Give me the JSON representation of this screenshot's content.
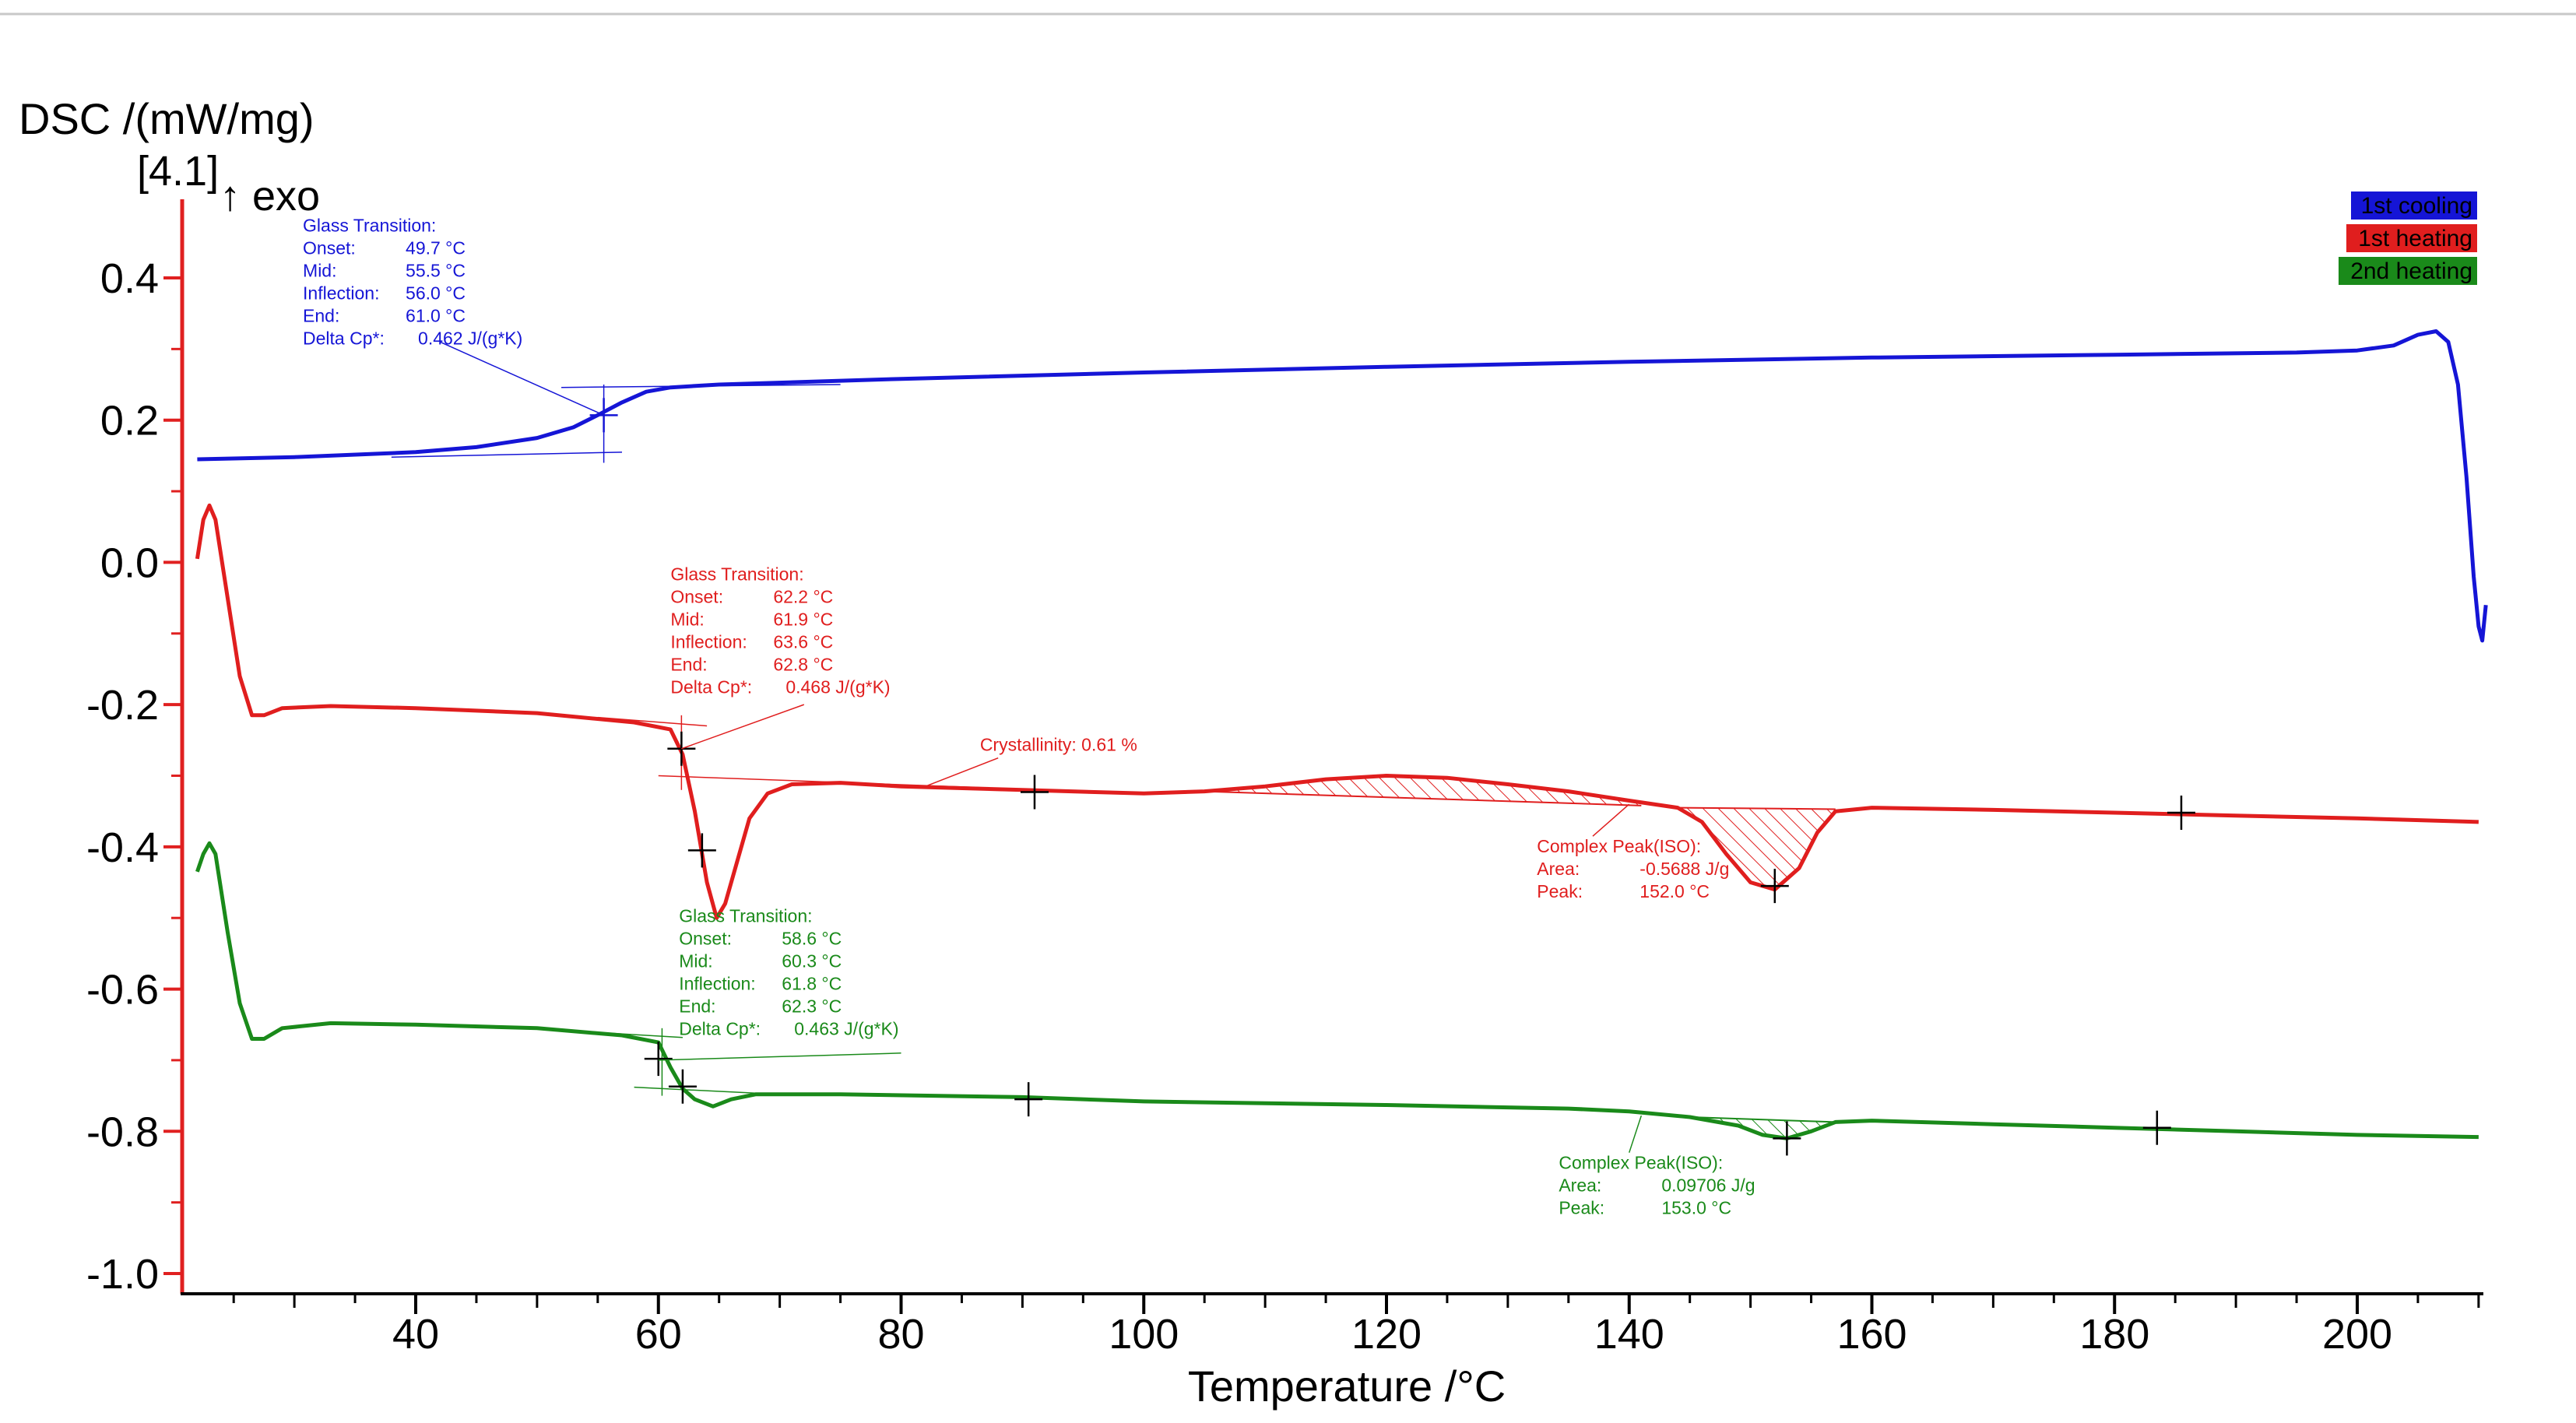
{
  "chart_data": {
    "type": "line",
    "ylabel": "DSC /(mW/mg)",
    "ylabel_tag": "[4.1]",
    "exo_label": "↑ exo",
    "xlabel": "Temperature /°C",
    "xlim": [
      22,
      212
    ],
    "ylim": [
      -1.03,
      0.5
    ],
    "xticks": [
      "40",
      "60",
      "80",
      "100",
      "120",
      "140",
      "160",
      "180",
      "200"
    ],
    "yticks": [
      "0.4",
      "0.2",
      "0.0",
      "-0.2",
      "-0.4",
      "-0.6",
      "-0.8",
      "-1.0"
    ],
    "colors": {
      "blue": "#1515d6",
      "red": "#e01e1e",
      "green": "#1a8a1a",
      "axis": "#e02020"
    },
    "legend": [
      "1st cooling",
      "1st heating",
      "2nd heating"
    ],
    "series": [
      {
        "name": "1st cooling",
        "color": "#1515d6",
        "points": [
          [
            22,
            0.145
          ],
          [
            30,
            0.148
          ],
          [
            40,
            0.155
          ],
          [
            45,
            0.162
          ],
          [
            50,
            0.175
          ],
          [
            53,
            0.19
          ],
          [
            55,
            0.207
          ],
          [
            57,
            0.225
          ],
          [
            59,
            0.24
          ],
          [
            61,
            0.246
          ],
          [
            65,
            0.25
          ],
          [
            80,
            0.258
          ],
          [
            100,
            0.267
          ],
          [
            120,
            0.275
          ],
          [
            140,
            0.282
          ],
          [
            160,
            0.288
          ],
          [
            180,
            0.292
          ],
          [
            195,
            0.295
          ],
          [
            200,
            0.298
          ],
          [
            203,
            0.305
          ],
          [
            205,
            0.32
          ],
          [
            206.5,
            0.325
          ],
          [
            207.5,
            0.31
          ],
          [
            208.3,
            0.25
          ],
          [
            209,
            0.12
          ],
          [
            209.6,
            -0.02
          ],
          [
            210,
            -0.09
          ],
          [
            210.3,
            -0.11
          ],
          [
            210.6,
            -0.06
          ]
        ]
      },
      {
        "name": "1st heating",
        "color": "#e01e1e",
        "points": [
          [
            22,
            0.005
          ],
          [
            22.5,
            0.06
          ],
          [
            23,
            0.08
          ],
          [
            23.5,
            0.06
          ],
          [
            24.5,
            -0.05
          ],
          [
            25.5,
            -0.16
          ],
          [
            26.5,
            -0.215
          ],
          [
            27.5,
            -0.215
          ],
          [
            29,
            -0.205
          ],
          [
            33,
            -0.202
          ],
          [
            40,
            -0.205
          ],
          [
            50,
            -0.212
          ],
          [
            58,
            -0.225
          ],
          [
            61,
            -0.235
          ],
          [
            62,
            -0.27
          ],
          [
            63,
            -0.35
          ],
          [
            64,
            -0.45
          ],
          [
            64.8,
            -0.5
          ],
          [
            65.5,
            -0.48
          ],
          [
            66.5,
            -0.42
          ],
          [
            67.5,
            -0.36
          ],
          [
            69,
            -0.325
          ],
          [
            71,
            -0.312
          ],
          [
            75,
            -0.31
          ],
          [
            80,
            -0.315
          ],
          [
            90,
            -0.32
          ],
          [
            100,
            -0.325
          ],
          [
            105,
            -0.322
          ],
          [
            110,
            -0.315
          ],
          [
            115,
            -0.305
          ],
          [
            120,
            -0.3
          ],
          [
            125,
            -0.303
          ],
          [
            130,
            -0.312
          ],
          [
            135,
            -0.322
          ],
          [
            140,
            -0.335
          ],
          [
            144,
            -0.345
          ],
          [
            146,
            -0.365
          ],
          [
            148,
            -0.41
          ],
          [
            150,
            -0.45
          ],
          [
            152,
            -0.46
          ],
          [
            154,
            -0.43
          ],
          [
            155.5,
            -0.38
          ],
          [
            157,
            -0.35
          ],
          [
            160,
            -0.345
          ],
          [
            170,
            -0.348
          ],
          [
            180,
            -0.352
          ],
          [
            190,
            -0.356
          ],
          [
            200,
            -0.36
          ],
          [
            210,
            -0.365
          ]
        ]
      },
      {
        "name": "2nd heating",
        "color": "#1a8a1a",
        "points": [
          [
            22,
            -0.435
          ],
          [
            22.5,
            -0.41
          ],
          [
            23,
            -0.395
          ],
          [
            23.5,
            -0.41
          ],
          [
            24.5,
            -0.52
          ],
          [
            25.5,
            -0.62
          ],
          [
            26.5,
            -0.67
          ],
          [
            27.5,
            -0.67
          ],
          [
            29,
            -0.655
          ],
          [
            33,
            -0.648
          ],
          [
            40,
            -0.65
          ],
          [
            50,
            -0.655
          ],
          [
            57,
            -0.665
          ],
          [
            60,
            -0.675
          ],
          [
            61,
            -0.71
          ],
          [
            62,
            -0.74
          ],
          [
            63,
            -0.755
          ],
          [
            64.5,
            -0.765
          ],
          [
            66,
            -0.755
          ],
          [
            68,
            -0.748
          ],
          [
            75,
            -0.748
          ],
          [
            90,
            -0.752
          ],
          [
            100,
            -0.758
          ],
          [
            120,
            -0.763
          ],
          [
            135,
            -0.768
          ],
          [
            140,
            -0.772
          ],
          [
            145,
            -0.78
          ],
          [
            149,
            -0.792
          ],
          [
            151,
            -0.805
          ],
          [
            153,
            -0.81
          ],
          [
            155,
            -0.8
          ],
          [
            157,
            -0.787
          ],
          [
            160,
            -0.785
          ],
          [
            170,
            -0.79
          ],
          [
            180,
            -0.795
          ],
          [
            190,
            -0.8
          ],
          [
            200,
            -0.805
          ],
          [
            210,
            -0.808
          ]
        ]
      }
    ],
    "markers": [
      {
        "x": 55.5,
        "y": 0.207,
        "color": "#1515d6"
      },
      {
        "x": 61.9,
        "y": -0.262,
        "color": "#000000"
      },
      {
        "x": 63.6,
        "y": -0.405,
        "color": "#000000"
      },
      {
        "x": 91,
        "y": -0.323,
        "color": "#000000"
      },
      {
        "x": 152,
        "y": -0.455,
        "color": "#000000"
      },
      {
        "x": 185.5,
        "y": -0.352,
        "color": "#000000"
      },
      {
        "x": 60,
        "y": -0.698,
        "color": "#000000"
      },
      {
        "x": 62,
        "y": -0.737,
        "color": "#000000"
      },
      {
        "x": 90.5,
        "y": -0.755,
        "color": "#000000"
      },
      {
        "x": 153,
        "y": -0.81,
        "color": "#000000"
      },
      {
        "x": 183.5,
        "y": -0.795,
        "color": "#000000"
      }
    ],
    "shaded_regions": [
      {
        "name": "crystallinity-1st-heating",
        "color": "#e01e1e",
        "x_start": 105,
        "x_end": 141,
        "baseline": [
          -0.322,
          -0.342
        ]
      },
      {
        "name": "peak-1st-heating",
        "color": "#e01e1e",
        "x_start": 144,
        "x_end": 157,
        "baseline": [
          -0.345,
          -0.347
        ]
      },
      {
        "name": "peak-2nd-heating",
        "color": "#1a8a1a",
        "x_start": 145,
        "x_end": 157,
        "baseline": [
          -0.78,
          -0.787
        ]
      }
    ],
    "annotations": [
      {
        "name": "blue-glass-transition",
        "color": "#1515d6",
        "anchor": {
          "x": 30.7,
          "y": 0.465
        },
        "target": {
          "x": 55.5,
          "y": 0.207
        },
        "leader_from": {
          "x": 42,
          "y": 0.31
        },
        "title": "Glass Transition:",
        "rows": [
          {
            "label": "Onset:",
            "value": "49.7 °C"
          },
          {
            "label": "Mid:",
            "value": "55.5 °C"
          },
          {
            "label": "Inflection:",
            "value": "56.0 °C"
          },
          {
            "label": "End:",
            "value": "61.0 °C"
          },
          {
            "label": "Delta Cp*:",
            "value": "0.462 J/(g*K)"
          }
        ]
      },
      {
        "name": "red-glass-transition",
        "color": "#e01e1e",
        "anchor": {
          "x": 61.0,
          "y": -0.025
        },
        "target": {
          "x": 61.9,
          "y": -0.262
        },
        "leader_from": {
          "x": 72,
          "y": -0.2
        },
        "title": "Glass Transition:",
        "rows": [
          {
            "label": "Onset:",
            "value": "62.2 °C"
          },
          {
            "label": "Mid:",
            "value": "61.9 °C"
          },
          {
            "label": "Inflection:",
            "value": "63.6 °C"
          },
          {
            "label": "End:",
            "value": "62.8 °C"
          },
          {
            "label": "Delta Cp*:",
            "value": "0.468 J/(g*K)"
          }
        ]
      },
      {
        "name": "green-glass-transition",
        "color": "#1a8a1a",
        "anchor": {
          "x": 61.7,
          "y": -0.506
        },
        "target": {
          "x": 60,
          "y": -0.7
        },
        "leader_from": {
          "x": 80,
          "y": -0.69
        },
        "title": "Glass Transition:",
        "rows": [
          {
            "label": "Onset:",
            "value": "58.6 °C"
          },
          {
            "label": "Mid:",
            "value": "60.3 °C"
          },
          {
            "label": "Inflection:",
            "value": "61.8 °C"
          },
          {
            "label": "End:",
            "value": "62.3 °C"
          },
          {
            "label": "Delta Cp*:",
            "value": "0.463 J/(g*K)"
          }
        ]
      },
      {
        "name": "red-complex-peak",
        "color": "#e01e1e",
        "anchor": {
          "x": 132.4,
          "y": -0.408
        },
        "target": {
          "x": 140,
          "y": -0.34
        },
        "leader_from": {
          "x": 137,
          "y": -0.385
        },
        "title": "Complex Peak(ISO):",
        "rows": [
          {
            "label": "Area:",
            "value": "-0.5688 J/g"
          },
          {
            "label": "Peak:",
            "value": "152.0 °C"
          }
        ]
      },
      {
        "name": "green-complex-peak",
        "color": "#1a8a1a",
        "anchor": {
          "x": 134.2,
          "y": -0.853
        },
        "target": {
          "x": 141,
          "y": -0.778
        },
        "leader_from": {
          "x": 140,
          "y": -0.83
        },
        "title": "Complex Peak(ISO):",
        "rows": [
          {
            "label": "Area:",
            "value": "0.09706 J/g"
          },
          {
            "label": "Peak:",
            "value": "153.0 °C"
          }
        ]
      },
      {
        "name": "red-crystallinity",
        "color": "#e01e1e",
        "anchor": {
          "x": 86.5,
          "y": -0.265
        },
        "target": {
          "x": 82,
          "y": -0.315
        },
        "leader_from": {
          "x": 88,
          "y": -0.275
        },
        "title": "Crystallinity: 0.61 %",
        "rows": []
      }
    ]
  }
}
